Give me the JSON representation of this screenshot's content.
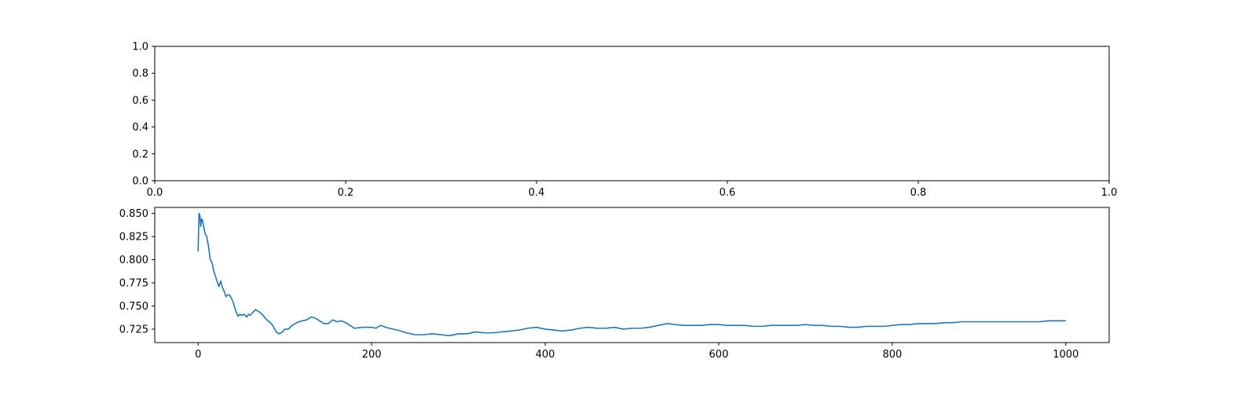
{
  "chart_data": [
    {
      "type": "line",
      "title": "",
      "xlabel": "",
      "ylabel": "",
      "xlim": [
        0.0,
        1.0
      ],
      "ylim": [
        0.0,
        1.0
      ],
      "grid": false,
      "x_ticks": [
        0.0,
        0.2,
        0.4,
        0.6,
        0.8,
        1.0
      ],
      "x_tick_labels": [
        "0.0",
        "0.2",
        "0.4",
        "0.6",
        "0.8",
        "1.0"
      ],
      "y_ticks": [
        0.0,
        0.2,
        0.4,
        0.6,
        0.8,
        1.0
      ],
      "y_tick_labels": [
        "0.0",
        "0.2",
        "0.4",
        "0.6",
        "0.8",
        "1.0"
      ],
      "series": []
    },
    {
      "type": "line",
      "title": "",
      "xlabel": "",
      "ylabel": "",
      "xlim": [
        -50,
        1050
      ],
      "ylim": [
        0.7105,
        0.8565
      ],
      "grid": false,
      "x_ticks": [
        0,
        200,
        400,
        600,
        800,
        1000
      ],
      "x_tick_labels": [
        "0",
        "200",
        "400",
        "600",
        "800",
        "1000"
      ],
      "y_ticks": [
        0.725,
        0.75,
        0.775,
        0.8,
        0.825,
        0.85
      ],
      "y_tick_labels": [
        "0.725",
        "0.750",
        "0.775",
        "0.800",
        "0.825",
        "0.850"
      ],
      "color": "#1f77b4",
      "series": [
        {
          "x": [
            0,
            1,
            2,
            3,
            4,
            5,
            6,
            7,
            8,
            10,
            12,
            14,
            16,
            18,
            20,
            22,
            24,
            26,
            28,
            30,
            32,
            34,
            36,
            38,
            40,
            42,
            44,
            46,
            48,
            50,
            53,
            56,
            58,
            60,
            63,
            66,
            70,
            74,
            78,
            82,
            86,
            90,
            93,
            96,
            100,
            104,
            108,
            112,
            116,
            120,
            125,
            130,
            135,
            140,
            145,
            150,
            155,
            160,
            165,
            170,
            175,
            180,
            190,
            200,
            205,
            210,
            220,
            230,
            240,
            250,
            260,
            270,
            280,
            290,
            300,
            310,
            320,
            330,
            340,
            350,
            360,
            370,
            380,
            390,
            400,
            410,
            420,
            430,
            440,
            450,
            460,
            470,
            480,
            490,
            500,
            510,
            520,
            530,
            540,
            550,
            560,
            570,
            580,
            590,
            600,
            610,
            620,
            630,
            640,
            650,
            660,
            670,
            680,
            690,
            700,
            710,
            720,
            730,
            740,
            750,
            760,
            770,
            780,
            790,
            800,
            810,
            820,
            830,
            840,
            850,
            860,
            870,
            880,
            890,
            900,
            910,
            920,
            930,
            940,
            950,
            960,
            970,
            980,
            990,
            1000
          ],
          "y": [
            0.809,
            0.85,
            0.848,
            0.836,
            0.844,
            0.843,
            0.838,
            0.833,
            0.828,
            0.825,
            0.814,
            0.8,
            0.797,
            0.788,
            0.782,
            0.776,
            0.771,
            0.777,
            0.77,
            0.766,
            0.76,
            0.762,
            0.762,
            0.759,
            0.755,
            0.749,
            0.743,
            0.739,
            0.741,
            0.74,
            0.741,
            0.738,
            0.741,
            0.74,
            0.743,
            0.746,
            0.744,
            0.741,
            0.736,
            0.733,
            0.729,
            0.722,
            0.72,
            0.721,
            0.725,
            0.725,
            0.729,
            0.731,
            0.733,
            0.734,
            0.735,
            0.738,
            0.737,
            0.734,
            0.731,
            0.731,
            0.735,
            0.733,
            0.734,
            0.732,
            0.729,
            0.726,
            0.727,
            0.727,
            0.726,
            0.729,
            0.726,
            0.724,
            0.721,
            0.719,
            0.719,
            0.72,
            0.719,
            0.718,
            0.72,
            0.72,
            0.722,
            0.721,
            0.721,
            0.722,
            0.723,
            0.724,
            0.726,
            0.727,
            0.725,
            0.724,
            0.723,
            0.724,
            0.726,
            0.727,
            0.726,
            0.726,
            0.727,
            0.725,
            0.726,
            0.726,
            0.727,
            0.729,
            0.731,
            0.73,
            0.729,
            0.729,
            0.729,
            0.73,
            0.73,
            0.729,
            0.729,
            0.729,
            0.728,
            0.728,
            0.729,
            0.729,
            0.729,
            0.729,
            0.73,
            0.729,
            0.729,
            0.728,
            0.728,
            0.727,
            0.727,
            0.728,
            0.728,
            0.728,
            0.729,
            0.73,
            0.73,
            0.731,
            0.731,
            0.731,
            0.732,
            0.732,
            0.733,
            0.733,
            0.733,
            0.733,
            0.733,
            0.733,
            0.733,
            0.733,
            0.733,
            0.733,
            0.734,
            0.734,
            0.734
          ]
        }
      ]
    }
  ]
}
